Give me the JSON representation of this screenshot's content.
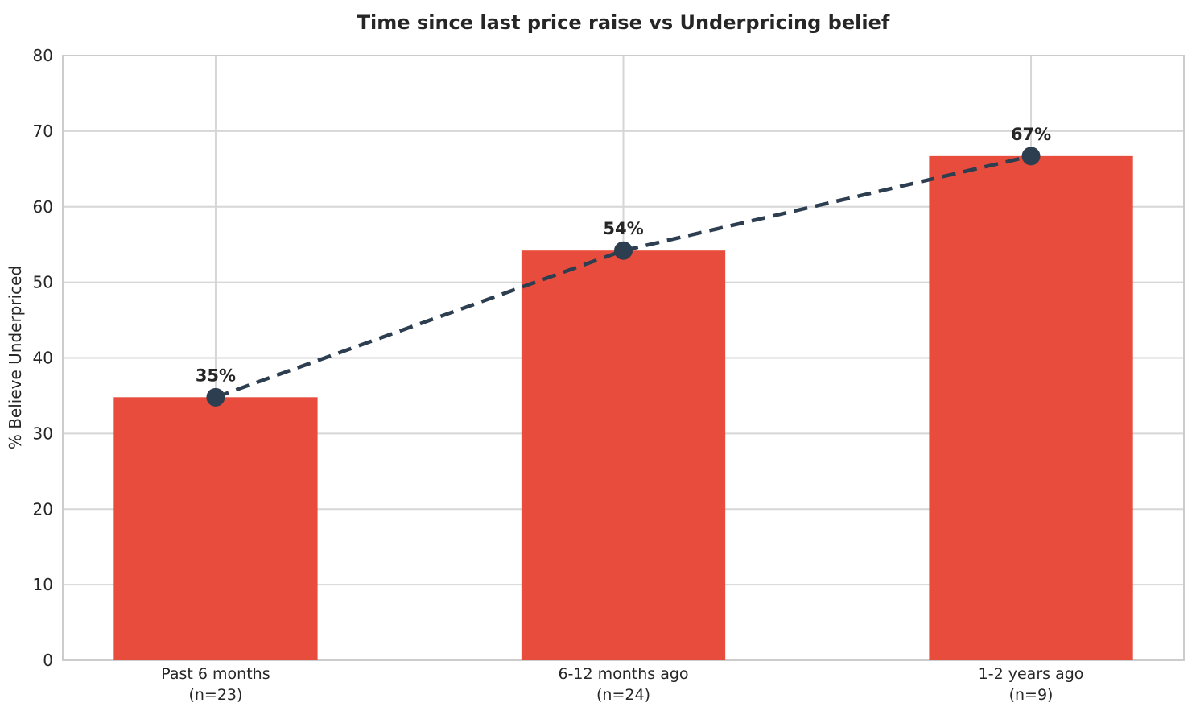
{
  "chart_data": {
    "type": "bar",
    "title": "Time since last price raise vs Underpricing belief",
    "xlabel": "",
    "ylabel": "% Believe Underpriced",
    "categories": [
      "Past 6 months",
      "6-12 months ago",
      "1-2 years ago"
    ],
    "category_sublabels": [
      "(n=23)",
      "(n=24)",
      "(n=9)"
    ],
    "sample_sizes": [
      23,
      24,
      9
    ],
    "series": [
      {
        "name": "% Believe Underpriced (bars)",
        "type": "bar",
        "values": [
          34.8,
          54.2,
          66.7
        ],
        "color": "#e74c3c"
      },
      {
        "name": "% Believe Underpriced (trend)",
        "type": "line",
        "line_style": "dashed",
        "marker": "circle",
        "values": [
          34.8,
          54.2,
          66.7
        ],
        "point_labels": [
          "35%",
          "54%",
          "67%"
        ],
        "color": "#2c3e50"
      }
    ],
    "ylim": [
      0,
      80
    ],
    "yticks": [
      0,
      10,
      20,
      30,
      40,
      50,
      60,
      70,
      80
    ],
    "grid": true,
    "legend": false,
    "colors": {
      "background": "#ffffff",
      "grid": "#d6d6d6",
      "spine": "#cccccc",
      "text": "#262626"
    }
  }
}
